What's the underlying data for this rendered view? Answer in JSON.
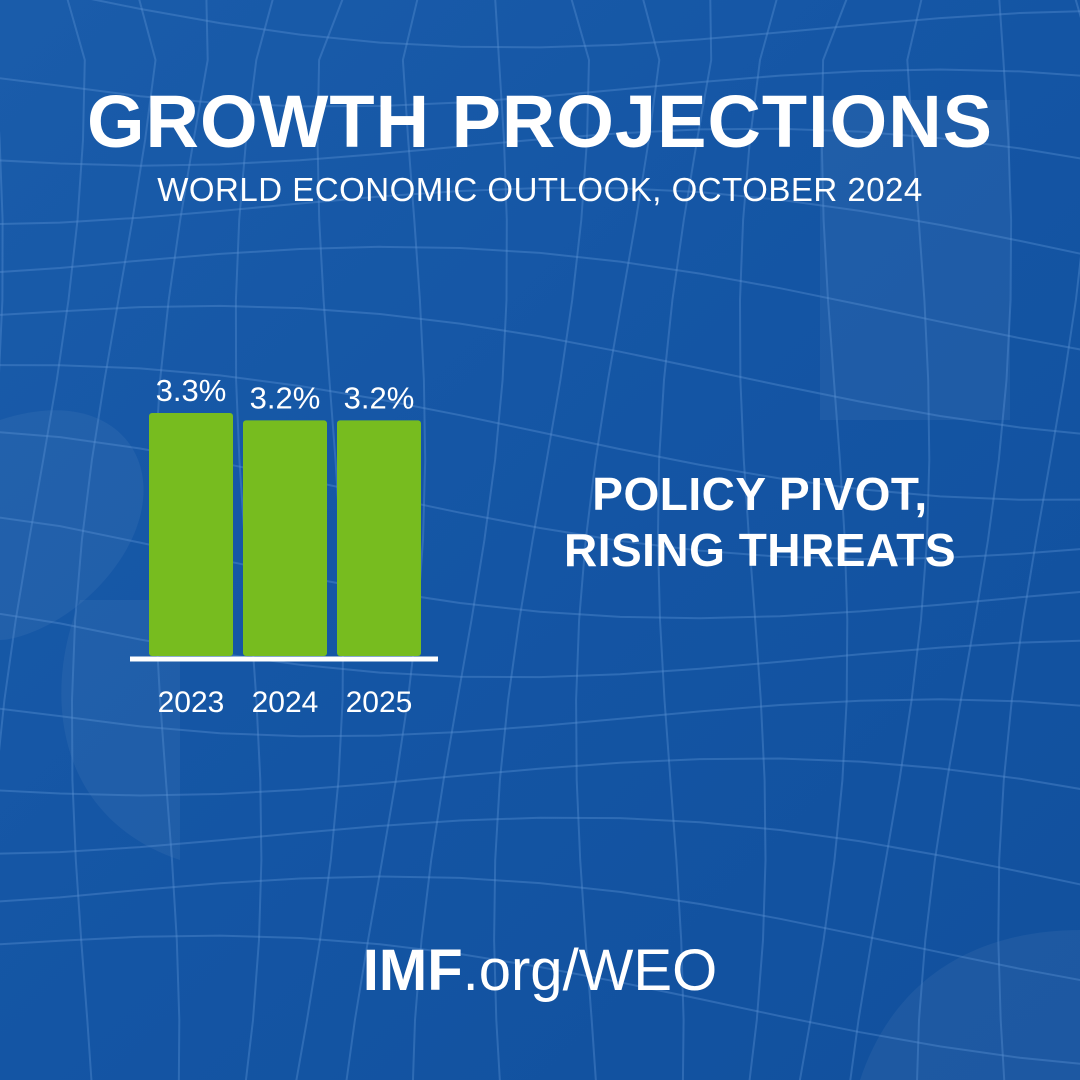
{
  "header": {
    "title": "GROWTH PROJECTIONS",
    "subtitle": "WORLD ECONOMIC OUTLOOK, OCTOBER 2024"
  },
  "tagline": {
    "line1": "POLICY PIVOT,",
    "line2": "RISING THREATS"
  },
  "footer": {
    "link_strong": "IMF",
    "link_rest": ".org/WEO"
  },
  "colors": {
    "background": "#1455a4",
    "bar": "#77bc1f",
    "text": "#ffffff"
  },
  "chart_data": {
    "type": "bar",
    "categories": [
      "2023",
      "2024",
      "2025"
    ],
    "values": [
      3.3,
      3.2,
      3.2
    ],
    "data_labels": [
      "3.3%",
      "3.2%",
      "3.2%"
    ],
    "title": "",
    "xlabel": "",
    "ylabel": "",
    "ylim": [
      0,
      3.3
    ],
    "grid": false,
    "legend": "none"
  }
}
